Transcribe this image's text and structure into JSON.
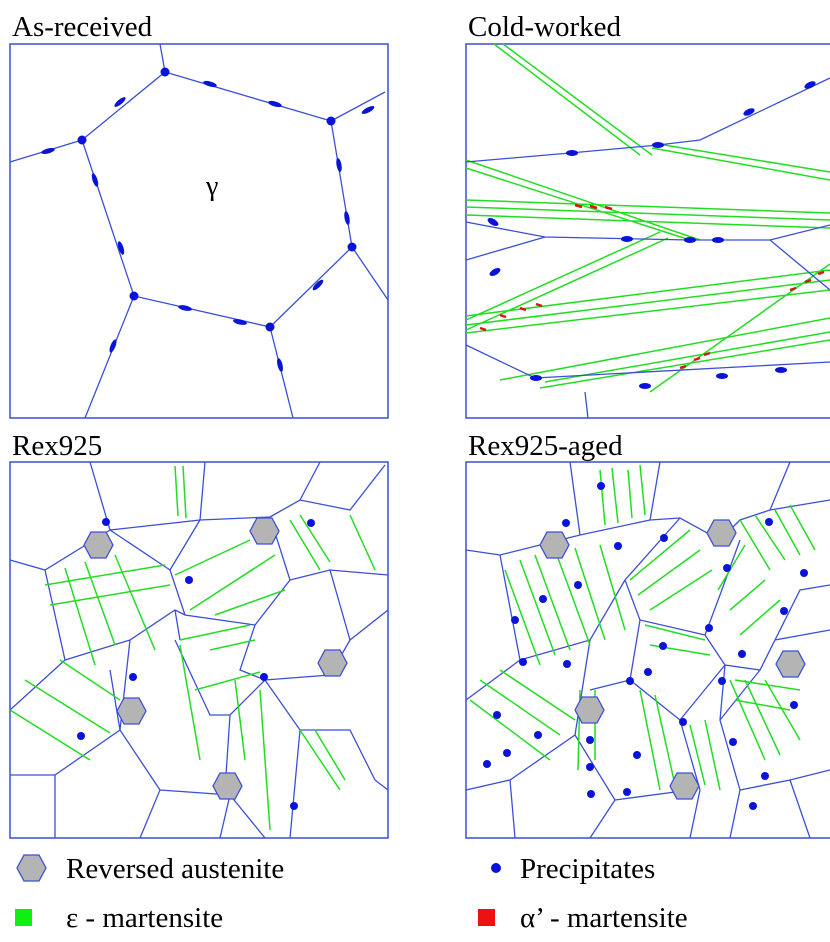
{
  "panels": [
    {
      "title": "As-received"
    },
    {
      "title": "Cold-worked"
    },
    {
      "title": "Rex925"
    },
    {
      "title": "Rex925-aged"
    }
  ],
  "annotations": {
    "grain": "γ"
  },
  "legend": [
    {
      "label": "Reversed austenite"
    },
    {
      "label": "Precipitates"
    },
    {
      "label": "ε - martensite"
    },
    {
      "label": "α’ - martensite"
    }
  ]
}
